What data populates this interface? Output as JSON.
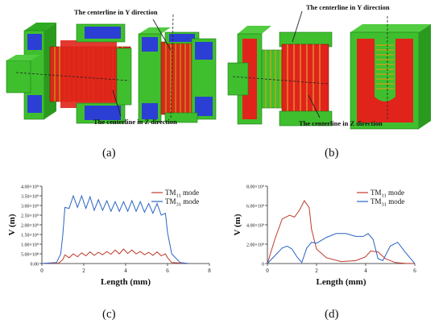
{
  "panels": {
    "a": "(a)",
    "b": "(b)",
    "c": "(c)",
    "d": "(d)"
  },
  "annotations": {
    "a_y": "The centerline in Y direction",
    "a_z": "The centerline in Z direction",
    "b_y": "The centerline in Y direction",
    "b_z": "The centerline in Z direction"
  },
  "colors": {
    "tm11": "#c0392b",
    "tm31": "#2a63c4",
    "model_green": "#3fbf2e",
    "model_red": "#e0241b",
    "model_blue": "#2b3fd4"
  },
  "chart_data": [
    {
      "type": "line",
      "panel": "c",
      "xlabel": "Length (mm)",
      "ylabel": "V (m)",
      "xlim": [
        0,
        8
      ],
      "ylim": [
        0,
        4000000000.0
      ],
      "xticks": [
        "0",
        "2",
        "4",
        "6",
        "8"
      ],
      "yticks": [
        "0.00",
        "5.00×10⁸",
        "1.00×10⁹",
        "1.50×10⁹",
        "2.00×10⁹",
        "2.50×10⁹",
        "3.00×10⁹",
        "3.50×10⁹",
        "4.00×10⁹"
      ],
      "legend": "top-right",
      "series": [
        {
          "name": "TM₁₁ mode",
          "color": "#c0392b",
          "x": [
            0,
            0.8,
            1.0,
            1.1,
            1.3,
            1.5,
            1.7,
            1.9,
            2.1,
            2.3,
            2.5,
            2.7,
            2.9,
            3.1,
            3.3,
            3.5,
            3.7,
            3.9,
            4.1,
            4.3,
            4.5,
            4.7,
            4.9,
            5.1,
            5.3,
            5.5,
            5.7,
            5.9,
            6.0,
            6.2,
            7.0
          ],
          "y": [
            0,
            20000000.0,
            200000000.0,
            450000000.0,
            300000000.0,
            500000000.0,
            350000000.0,
            550000000.0,
            400000000.0,
            600000000.0,
            420000000.0,
            580000000.0,
            450000000.0,
            620000000.0,
            480000000.0,
            700000000.0,
            500000000.0,
            750000000.0,
            520000000.0,
            700000000.0,
            500000000.0,
            620000000.0,
            450000000.0,
            580000000.0,
            420000000.0,
            600000000.0,
            400000000.0,
            500000000.0,
            300000000.0,
            50000000.0,
            0
          ]
        },
        {
          "name": "TM₃₁ mode",
          "color": "#2a63c4",
          "x": [
            0,
            0.7,
            0.9,
            1.0,
            1.1,
            1.3,
            1.5,
            1.7,
            1.9,
            2.1,
            2.3,
            2.5,
            2.7,
            2.9,
            3.1,
            3.3,
            3.5,
            3.7,
            3.9,
            4.1,
            4.3,
            4.5,
            4.7,
            4.9,
            5.1,
            5.3,
            5.5,
            5.7,
            5.9,
            6.0,
            6.2,
            6.6,
            7.0
          ],
          "y": [
            0,
            50000000.0,
            500000000.0,
            1500000000.0,
            2900000000.0,
            2850000000.0,
            3500000000.0,
            2900000000.0,
            3500000000.0,
            2850000000.0,
            3450000000.0,
            2750000000.0,
            3300000000.0,
            2750000000.0,
            3250000000.0,
            2700000000.0,
            3200000000.0,
            2700000000.0,
            3200000000.0,
            2700000000.0,
            3250000000.0,
            2700000000.0,
            3200000000.0,
            2650000000.0,
            3100000000.0,
            2600000000.0,
            3100000000.0,
            2500000000.0,
            2600000000.0,
            1600000000.0,
            500000000.0,
            50000000.0,
            0
          ]
        }
      ]
    },
    {
      "type": "line",
      "panel": "d",
      "xlabel": "Length (mm)",
      "ylabel": "V (m)",
      "xlim": [
        0,
        6
      ],
      "ylim": [
        0,
        8000000000.0
      ],
      "xticks": [
        "0",
        "2",
        "4",
        "6"
      ],
      "yticks": [
        "0",
        "2.00×10⁹",
        "4.00×10⁹",
        "6.00×10⁹",
        "8.00×10⁹"
      ],
      "legend": "top-right",
      "series": [
        {
          "name": "TM₁₁ mode",
          "color": "#c0392b",
          "x": [
            0,
            0.3,
            0.6,
            0.9,
            1.1,
            1.3,
            1.5,
            1.7,
            1.8,
            2.0,
            2.4,
            3.0,
            3.6,
            4.0,
            4.2,
            4.5,
            4.8,
            5.2,
            5.6,
            6.0
          ],
          "y": [
            0,
            2500000000.0,
            4600000000.0,
            5000000000.0,
            4800000000.0,
            5500000000.0,
            6500000000.0,
            5800000000.0,
            3500000000.0,
            1500000000.0,
            600000000.0,
            200000000.0,
            300000000.0,
            700000000.0,
            1300000000.0,
            1200000000.0,
            500000000.0,
            100000000.0,
            20000000.0,
            0
          ]
        },
        {
          "name": "TM₃₁ mode",
          "color": "#2a63c4",
          "x": [
            0,
            0.3,
            0.6,
            0.8,
            1.0,
            1.2,
            1.4,
            1.6,
            1.8,
            2.0,
            2.4,
            2.8,
            3.2,
            3.6,
            3.9,
            4.1,
            4.3,
            4.5,
            4.7,
            5.0,
            5.3,
            5.6,
            6.0
          ],
          "y": [
            0,
            800000000.0,
            1600000000.0,
            1800000000.0,
            1500000000.0,
            700000000.0,
            100000000.0,
            1600000000.0,
            2200000000.0,
            2100000000.0,
            2700000000.0,
            3100000000.0,
            3100000000.0,
            2800000000.0,
            2800000000.0,
            3100000000.0,
            2500000000.0,
            500000000.0,
            300000000.0,
            1800000000.0,
            2200000000.0,
            1200000000.0,
            0
          ]
        }
      ]
    }
  ]
}
